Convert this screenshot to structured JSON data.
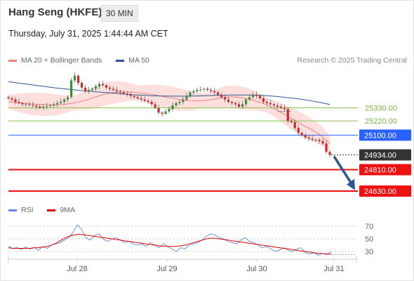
{
  "header": {
    "instrument": "Hang Seng (HKFE)",
    "interval": "30 MIN",
    "datetime": "Thursday, July 31, 2025 1:44:44 AM CET"
  },
  "legend": {
    "ma20_label": "MA 20 + Bollinger Bands",
    "ma50_label": "MA 50",
    "credit": "Research © 2025 Trading Central",
    "ma20_color": "#f08080",
    "ma50_color": "#2f5597"
  },
  "rsi_legend": {
    "rsi_label": "RSI",
    "ma_label": "9MA",
    "rsi_color": "#5b8dd9",
    "ma_color": "#e00000"
  },
  "chart_data": [
    {
      "type": "candlestick",
      "title": "",
      "x_ticks": [
        "Jul 28",
        "Jul 29",
        "Jul 30",
        "Jul 31"
      ],
      "levels": [
        {
          "value": 25330.0,
          "label": "25330.00",
          "kind": "resistance",
          "color": "#8bc34a"
        },
        {
          "value": 25220.0,
          "label": "25220.00",
          "kind": "resistance",
          "color": "#8bc34a"
        },
        {
          "value": 25100.0,
          "label": "25100.00",
          "kind": "pivot",
          "color": "#2962ff"
        },
        {
          "value": 24934.0,
          "label": "24934.00",
          "kind": "last-price",
          "color": "#333333"
        },
        {
          "value": 24810.0,
          "label": "24810.00",
          "kind": "support",
          "color": "#ee1111"
        },
        {
          "value": 24630.0,
          "label": "24630.00",
          "kind": "support",
          "color": "#ee1111"
        }
      ],
      "arrow": {
        "from": 24934,
        "to": 24650,
        "direction": "down"
      },
      "close": [
        25410,
        25400,
        25380,
        25370,
        25360,
        25360,
        25355,
        25350,
        25340,
        25330,
        25340,
        25345,
        25350,
        25360,
        25370,
        25380,
        25400,
        25420,
        25560,
        25600,
        25540,
        25500,
        25470,
        25480,
        25490,
        25510,
        25530,
        25520,
        25500,
        25490,
        25480,
        25470,
        25460,
        25450,
        25440,
        25430,
        25420,
        25410,
        25400,
        25390,
        25380,
        25360,
        25330,
        25290,
        25280,
        25300,
        25320,
        25350,
        25370,
        25380,
        25400,
        25430,
        25460,
        25470,
        25480,
        25485,
        25490,
        25480,
        25470,
        25460,
        25440,
        25420,
        25400,
        25380,
        25370,
        25360,
        25340,
        25360,
        25400,
        25420,
        25440,
        25430,
        25410,
        25380,
        25370,
        25360,
        25350,
        25340,
        25330,
        25320,
        25220,
        25210,
        25160,
        25120,
        25100,
        25080,
        25070,
        25060,
        25060,
        25050,
        25030,
        24960,
        24934
      ],
      "bollinger": {
        "ma20": [
          25380,
          25376,
          25372,
          25368,
          25365,
          25362,
          25360,
          25358,
          25356,
          25355,
          25356,
          25360,
          25366,
          25374,
          25384,
          25396,
          25410,
          25424,
          25438,
          25450,
          25458,
          25462,
          25464,
          25464,
          25462,
          25458,
          25452,
          25446,
          25440,
          25432,
          25424,
          25416,
          25408,
          25400,
          25394,
          25390,
          25388,
          25388,
          25392,
          25398,
          25406,
          25414,
          25420,
          25422,
          25420,
          25414,
          25406,
          25396,
          25384,
          25370,
          25352,
          25330,
          25306,
          25282,
          25256,
          25230,
          25204,
          25180,
          25158,
          25134,
          25106,
          25070,
          25030
        ],
        "band_width": 75
      },
      "ma50": [
        25550,
        25540,
        25530,
        25520,
        25510,
        25500,
        25492,
        25484,
        25476,
        25470,
        25464,
        25458,
        25452,
        25446,
        25440,
        25436,
        25432,
        25430,
        25428,
        25428,
        25428,
        25430,
        25432,
        25434,
        25436,
        25438,
        25438,
        25438,
        25436,
        25432,
        25426,
        25418,
        25410,
        25400,
        25388,
        25374,
        25358
      ]
    },
    {
      "type": "line",
      "title": "",
      "y_ticks": [
        70,
        50,
        30
      ],
      "ylim": [
        20,
        78
      ],
      "series": [
        {
          "name": "RSI",
          "values": [
            38,
            35,
            36,
            33,
            37,
            34,
            36,
            32,
            38,
            35,
            40,
            42,
            44,
            48,
            52,
            60,
            72,
            65,
            52,
            48,
            55,
            58,
            50,
            46,
            50,
            52,
            48,
            44,
            46,
            42,
            40,
            42,
            38,
            44,
            40,
            36,
            42,
            38,
            34,
            30,
            36,
            34,
            40,
            42,
            44,
            48,
            54,
            58,
            56,
            52,
            50,
            46,
            44,
            42,
            48,
            52,
            46,
            44,
            40,
            36,
            38,
            34,
            30,
            32,
            36,
            32,
            30,
            34,
            36,
            28,
            26,
            28,
            24,
            27,
            25,
            30
          ]
        },
        {
          "name": "9MA",
          "values": [
            36,
            35,
            35,
            35,
            35,
            35,
            36,
            36,
            37,
            38,
            40,
            43,
            47,
            51,
            54,
            56,
            57,
            57,
            56,
            55,
            54,
            53,
            52,
            51,
            50,
            49,
            48,
            47,
            46,
            45,
            44,
            43,
            42,
            41,
            40,
            39,
            38,
            38,
            38,
            38,
            39,
            40,
            42,
            44,
            46,
            48,
            50,
            51,
            51,
            50,
            49,
            48,
            47,
            46,
            45,
            44,
            43,
            42,
            41,
            40,
            39,
            38,
            37,
            36,
            35,
            34,
            33,
            32,
            31,
            30,
            29,
            28,
            27,
            27,
            26,
            26
          ]
        }
      ]
    }
  ]
}
